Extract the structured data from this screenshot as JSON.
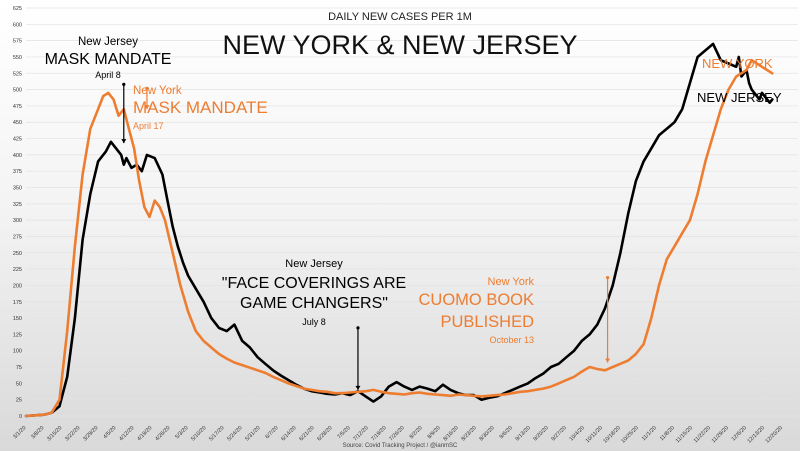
{
  "chart_data": {
    "type": "line",
    "subtitle": "DAILY NEW CASES PER 1M",
    "title": "NEW YORK & NEW JERSEY",
    "source": "Source: Covid Tracking Project / @ianmSC",
    "ylim": [
      0,
      625
    ],
    "y_ticks": [
      0,
      25,
      50,
      75,
      100,
      125,
      150,
      175,
      200,
      225,
      250,
      275,
      300,
      325,
      350,
      375,
      400,
      425,
      450,
      475,
      500,
      525,
      550,
      575,
      600,
      625
    ],
    "x_tick_labels": [
      "3/1/20",
      "3/8/20",
      "3/15/20",
      "3/22/20",
      "3/29/20",
      "4/5/20",
      "4/12/20",
      "4/19/20",
      "4/26/20",
      "5/3/20",
      "5/10/20",
      "5/17/20",
      "5/24/20",
      "5/31/20",
      "6/7/20",
      "6/14/20",
      "6/21/20",
      "6/28/20",
      "7/5/20",
      "7/12/20",
      "7/19/20",
      "7/26/20",
      "8/2/20",
      "8/9/20",
      "8/16/20",
      "8/23/20",
      "8/30/20",
      "9/6/20",
      "9/13/20",
      "9/20/20",
      "9/27/20",
      "10/4/20",
      "10/11/20",
      "10/18/20",
      "10/25/20",
      "11/1/20",
      "11/8/20",
      "11/15/20",
      "11/22/20",
      "11/29/20",
      "12/6/20",
      "12/13/20",
      "12/20/20"
    ],
    "x_tick_display": [
      "3/1/20",
      "3/15/20",
      "3/29/20",
      "4/12/20",
      "4/26/20",
      "5/10/20",
      "5/24/20",
      "6/7/20",
      "6/21/20",
      "7/5/20",
      "7/19/20",
      "8/2/20",
      "8/16/20",
      "8/30/20",
      "9/13/20",
      "9/27/20",
      "10/11/20",
      "10/25/20",
      "11/8/20",
      "11/22/20",
      "12/6/20",
      "12/20/20"
    ],
    "x_tick_display_short": [
      "3/1/20",
      "3/8/20",
      "3/15/20",
      "3/22/20",
      "3/29/20",
      "4/5/20",
      "4/12/20",
      "4/19/20",
      "4/26/20",
      "5/3/20",
      "5/10/20",
      "5/17/20",
      "5/24/20",
      "5/31/20",
      "6/7/20",
      "6/14/20",
      "6/21/20",
      "6/28/20",
      "7/5/20",
      "7/12/20",
      "7/19/20",
      "7/26/20",
      "8/2/20",
      "8/9/20",
      "8/16/20",
      "8/23/20",
      "8/30/20",
      "9/6/20",
      "9/13/20",
      "9/20/20",
      "9/27/20",
      "10/4/20",
      "10/11/20",
      "10/18/20",
      "10/25/20",
      "11/1/20",
      "11/8/20",
      "11/15/20",
      "11/22/20",
      "11/29/20",
      "12/6/20",
      "12/13/20",
      "12/20/20"
    ],
    "x_index": [
      0,
      7,
      14,
      21,
      28,
      35,
      42,
      49,
      56,
      63,
      70,
      77,
      84,
      91,
      98,
      105,
      112,
      119,
      126,
      133,
      140,
      147,
      154,
      161,
      168,
      175,
      182,
      189,
      196,
      203,
      210,
      217,
      224,
      231,
      238,
      245,
      252,
      259,
      266,
      273,
      280,
      287,
      294
    ],
    "xlim": [
      0,
      300
    ],
    "series": [
      {
        "name": "NEW JERSEY",
        "color": "#000000",
        "x": [
          0,
          7,
          10,
          13,
          16,
          19,
          22,
          25,
          28,
          31,
          33,
          35,
          37,
          38,
          39,
          41,
          43,
          45,
          47,
          50,
          53,
          55,
          57,
          59,
          61,
          63,
          66,
          69,
          72,
          75,
          78,
          81,
          84,
          87,
          90,
          93,
          96,
          99,
          102,
          105,
          108,
          111,
          114,
          117,
          120,
          123,
          126,
          129,
          132,
          135,
          138,
          141,
          144,
          147,
          150,
          153,
          156,
          159,
          162,
          165,
          168,
          171,
          174,
          177,
          180,
          183,
          186,
          189,
          192,
          195,
          198,
          201,
          204,
          207,
          210,
          213,
          216,
          219,
          222,
          225,
          228,
          231,
          234,
          237,
          240,
          243,
          246,
          249,
          252,
          255,
          258,
          261,
          264,
          267,
          270,
          273,
          276,
          277,
          278,
          279,
          280,
          281,
          282,
          283,
          284,
          285,
          286,
          287,
          288,
          289,
          290
        ],
        "y": [
          0,
          2,
          5,
          15,
          60,
          150,
          270,
          340,
          390,
          405,
          420,
          410,
          400,
          385,
          395,
          380,
          385,
          375,
          400,
          395,
          370,
          330,
          290,
          260,
          235,
          215,
          195,
          175,
          150,
          135,
          130,
          140,
          115,
          105,
          90,
          80,
          70,
          62,
          55,
          48,
          42,
          38,
          36,
          34,
          33,
          35,
          32,
          38,
          30,
          22,
          30,
          45,
          52,
          45,
          40,
          45,
          42,
          38,
          48,
          40,
          35,
          32,
          32,
          25,
          28,
          30,
          35,
          40,
          45,
          50,
          58,
          65,
          75,
          80,
          90,
          100,
          115,
          125,
          140,
          165,
          200,
          250,
          310,
          360,
          390,
          410,
          430,
          440,
          450,
          470,
          510,
          550,
          560,
          570,
          545,
          540,
          535,
          550,
          520,
          525,
          530,
          510,
          500,
          495,
          490,
          485,
          495,
          490,
          485,
          480,
          485
        ]
      },
      {
        "name": "NEW YORK",
        "color": "#ED7D31",
        "x": [
          0,
          7,
          10,
          13,
          16,
          19,
          22,
          25,
          28,
          30,
          32,
          34,
          36,
          38,
          40,
          42,
          44,
          46,
          48,
          50,
          52,
          54,
          57,
          60,
          63,
          66,
          69,
          72,
          75,
          78,
          81,
          84,
          87,
          90,
          93,
          96,
          99,
          102,
          105,
          108,
          111,
          114,
          117,
          120,
          123,
          126,
          129,
          132,
          135,
          138,
          141,
          144,
          147,
          150,
          153,
          156,
          159,
          162,
          165,
          168,
          171,
          174,
          177,
          180,
          183,
          186,
          189,
          192,
          195,
          198,
          201,
          204,
          207,
          210,
          213,
          216,
          219,
          222,
          225,
          228,
          231,
          234,
          237,
          240,
          243,
          246,
          249,
          252,
          255,
          258,
          261,
          264,
          267,
          270,
          273,
          276,
          278,
          280,
          282,
          284,
          286,
          288,
          290
        ],
        "y": [
          0,
          2,
          5,
          25,
          130,
          260,
          370,
          440,
          470,
          490,
          495,
          485,
          460,
          470,
          440,
          410,
          360,
          320,
          305,
          330,
          320,
          300,
          250,
          200,
          160,
          130,
          115,
          105,
          95,
          88,
          82,
          78,
          74,
          70,
          66,
          60,
          55,
          50,
          46,
          42,
          40,
          38,
          37,
          35,
          35,
          36,
          37,
          38,
          40,
          37,
          35,
          34,
          33,
          35,
          36,
          34,
          33,
          32,
          31,
          33,
          32,
          31,
          30,
          31,
          32,
          33,
          35,
          37,
          38,
          40,
          42,
          45,
          50,
          55,
          60,
          68,
          75,
          72,
          70,
          75,
          80,
          85,
          95,
          110,
          150,
          200,
          240,
          260,
          280,
          300,
          340,
          390,
          430,
          470,
          500,
          520,
          525,
          530,
          545,
          540,
          535,
          530,
          525
        ]
      }
    ],
    "annotations": {
      "nj_mask_small": "New Jersey",
      "nj_mask_big": "MASK MANDATE",
      "nj_mask_date": "April 8",
      "ny_mask_small": "New York",
      "ny_mask_big": "MASK MANDATE",
      "ny_mask_date": "April 17",
      "nj_face_small": "New Jersey",
      "nj_face_big1": "\"FACE COVERINGS ARE",
      "nj_face_big2": "GAME CHANGERS\"",
      "nj_face_date": "July 8",
      "ny_book_small": "New York",
      "ny_book_big1": "CUOMO BOOK",
      "ny_book_big2": "PUBLISHED",
      "ny_book_date": "October 13",
      "label_ny": "NEW YORK",
      "label_nj": "NEW JERSEY"
    },
    "colors": {
      "nj": "#000000",
      "ny": "#ED7D31",
      "grid": "#e2e2e2"
    },
    "grid": true
  }
}
